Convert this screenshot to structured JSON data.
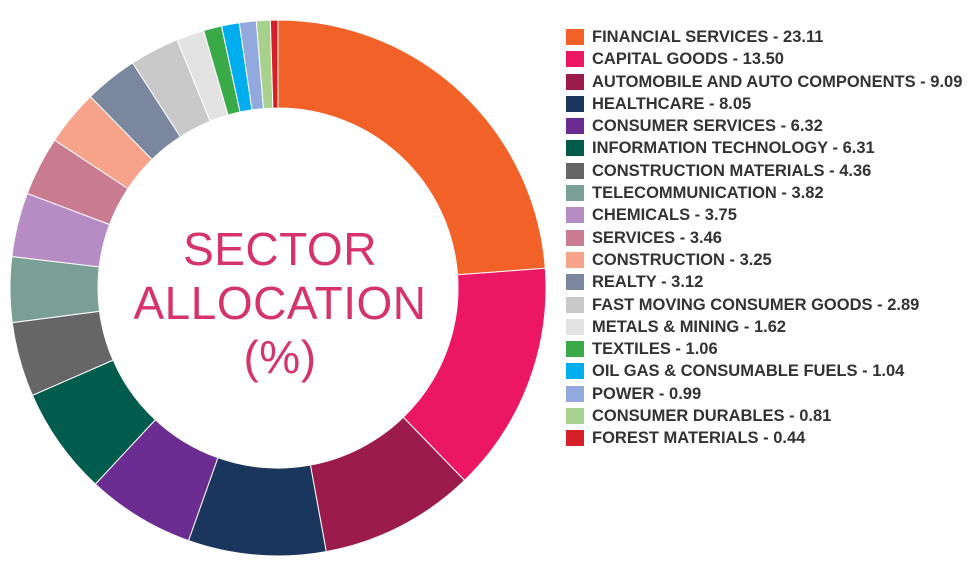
{
  "chart_data": {
    "type": "pie",
    "title": "SECTOR ALLOCATION (%)",
    "title_lines": [
      "SECTOR",
      "ALLOCATION",
      "(%)"
    ],
    "donut": true,
    "legend_position": "right",
    "categories": [
      "FINANCIAL SERVICES",
      "CAPITAL GOODS",
      "AUTOMOBILE AND AUTO COMPONENTS",
      "HEALTHCARE",
      "CONSUMER SERVICES",
      "INFORMATION TECHNOLOGY",
      "CONSTRUCTION MATERIALS",
      "TELECOMMUNICATION",
      "CHEMICALS",
      "SERVICES",
      "CONSTRUCTION",
      "REALTY",
      "FAST MOVING CONSUMER GOODS",
      "METALS & MINING",
      "TEXTILES",
      "OIL GAS & CONSUMABLE FUELS",
      "POWER",
      "CONSUMER DURABLES",
      "FOREST MATERIALS"
    ],
    "values": [
      23.11,
      13.5,
      9.09,
      8.05,
      6.32,
      6.31,
      4.36,
      3.82,
      3.75,
      3.46,
      3.25,
      3.12,
      2.89,
      1.62,
      1.06,
      1.04,
      0.99,
      0.81,
      0.44
    ],
    "value_labels": [
      "23.11",
      "13.50",
      "9.09",
      "8.05",
      "6.32",
      "6.31",
      "4.36",
      "3.82",
      "3.75",
      "3.46",
      "3.25",
      "3.12",
      "2.89",
      "1.62",
      "1.06",
      "1.04",
      "0.99",
      "0.81",
      "0.44"
    ],
    "colors": [
      "#f26228",
      "#ec1763",
      "#9b1b4b",
      "#1b365d",
      "#6b2d91",
      "#015c4e",
      "#666666",
      "#7a9f96",
      "#b58cc4",
      "#c97b92",
      "#f6a38a",
      "#7b879f",
      "#c9c9c9",
      "#e3e3e3",
      "#3aaa48",
      "#00aeef",
      "#93a8dc",
      "#a9d18e",
      "#d62027"
    ]
  }
}
